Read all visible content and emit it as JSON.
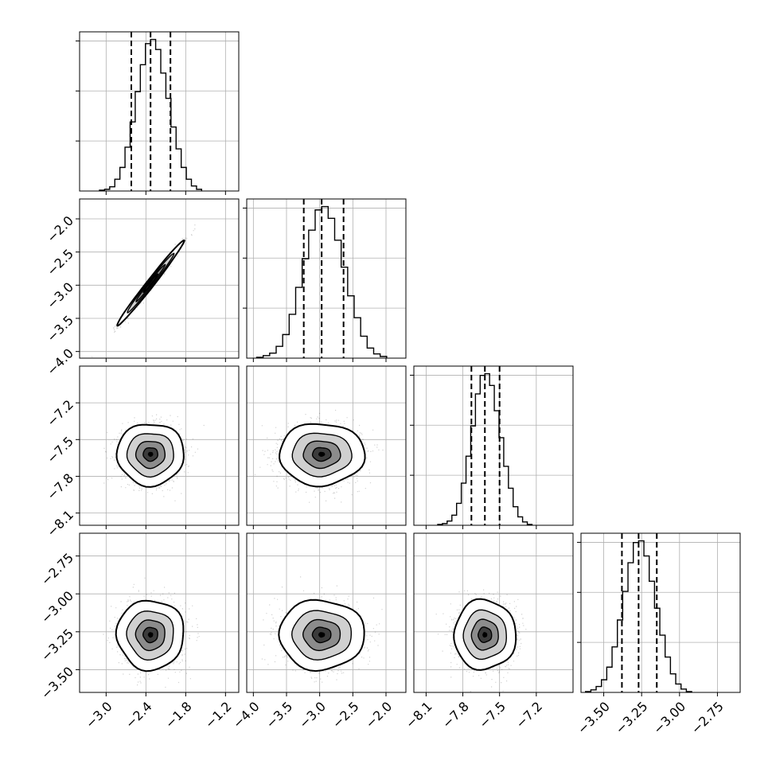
{
  "chart_data": {
    "type": "corner",
    "grid": true,
    "parameters": [
      {
        "range": [
          -3.4,
          -1.0
        ],
        "ticks": [
          -3.0,
          -2.4,
          -1.8,
          -1.2
        ],
        "tick_labels": [
          "−3.0",
          "−2.4",
          "−1.8",
          "−1.2"
        ],
        "quantiles": [
          -2.62,
          -2.33,
          -2.03
        ],
        "mean": -2.33,
        "sd": 0.22
      },
      {
        "range": [
          -4.1,
          -1.7
        ],
        "ticks": [
          -4.0,
          -3.5,
          -3.0,
          -2.5,
          -2.0
        ],
        "tick_labels": [
          "−4.0",
          "−3.5",
          "−3.0",
          "−2.5",
          "−2.0"
        ],
        "quantiles": [
          -3.24,
          -2.97,
          -2.64
        ],
        "mean": -2.97,
        "sd": 0.28
      },
      {
        "range": [
          -8.2,
          -6.9
        ],
        "ticks": [
          -8.1,
          -7.8,
          -7.5,
          -7.2
        ],
        "tick_labels": [
          "−8.1",
          "−7.8",
          "−7.5",
          "−7.2"
        ],
        "quantiles": [
          -7.73,
          -7.62,
          -7.5
        ],
        "mean": -7.62,
        "sd": 0.11
      },
      {
        "range": [
          -3.65,
          -2.6
        ],
        "ticks": [
          -3.5,
          -3.25,
          -3.0,
          -2.75
        ],
        "tick_labels": [
          "−3.50",
          "−3.25",
          "−3.00",
          "−2.75"
        ],
        "quantiles": [
          -3.38,
          -3.27,
          -3.15
        ],
        "mean": -3.27,
        "sd": 0.1
      }
    ],
    "histograms": [
      {
        "param": 0,
        "bins": 20,
        "counts": [
          1,
          2,
          5,
          14,
          28,
          52,
          82,
          118,
          150,
          175,
          180,
          168,
          140,
          110,
          76,
          50,
          28,
          14,
          6,
          2
        ]
      },
      {
        "param": 1,
        "bins": 20,
        "counts": [
          1,
          3,
          6,
          14,
          28,
          52,
          84,
          118,
          152,
          176,
          180,
          166,
          140,
          108,
          74,
          48,
          26,
          12,
          5,
          2
        ]
      },
      {
        "param": 2,
        "bins": 20,
        "counts": [
          1,
          2,
          5,
          12,
          26,
          50,
          82,
          118,
          156,
          178,
          180,
          166,
          136,
          104,
          70,
          44,
          22,
          10,
          4,
          1
        ]
      },
      {
        "param": 3,
        "bins": 20,
        "counts": [
          1,
          3,
          7,
          15,
          30,
          54,
          86,
          120,
          154,
          178,
          180,
          162,
          132,
          100,
          68,
          42,
          22,
          10,
          4,
          1
        ]
      }
    ],
    "pairs": [
      {
        "x": 0,
        "y": 1,
        "correlation": 0.99
      },
      {
        "x": 0,
        "y": 2,
        "correlation": 0.0
      },
      {
        "x": 1,
        "y": 2,
        "correlation": 0.0
      },
      {
        "x": 0,
        "y": 3,
        "correlation": 0.0
      },
      {
        "x": 1,
        "y": 3,
        "correlation": 0.0
      },
      {
        "x": 2,
        "y": 3,
        "correlation": 0.0
      }
    ]
  }
}
